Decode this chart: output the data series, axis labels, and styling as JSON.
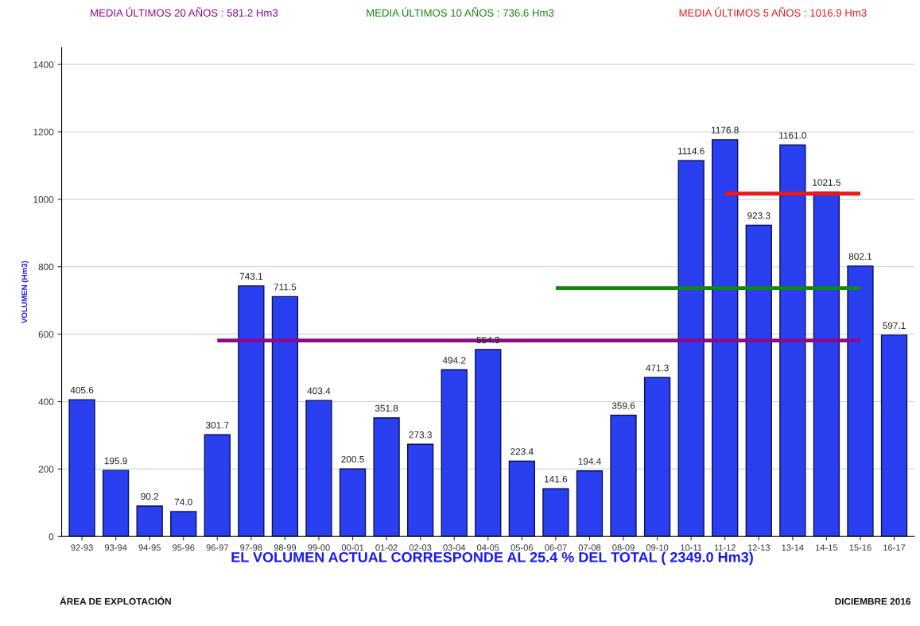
{
  "chart_data": {
    "type": "bar",
    "categories": [
      "92-93",
      "93-94",
      "94-95",
      "95-96",
      "96-97",
      "97-98",
      "98-99",
      "99-00",
      "00-01",
      "01-02",
      "02-03",
      "03-04",
      "04-05",
      "05-06",
      "06-07",
      "07-08",
      "08-09",
      "09-10",
      "10-11",
      "11-12",
      "12-13",
      "13-14",
      "14-15",
      "15-16",
      "16-17"
    ],
    "series": [
      {
        "color": "#2a3ff0",
        "values": [
          405.6,
          195.9,
          90.2,
          74.0,
          301.7,
          743.1,
          711.5,
          403.4,
          200.5,
          351.8,
          273.3,
          494.2,
          554.3,
          223.4,
          141.6,
          194.4,
          359.6,
          471.3,
          1114.6,
          1176.8,
          923.3,
          1161.0,
          1021.5,
          802.1,
          597.1
        ],
        "value_labels": [
          "405.6",
          "195.9",
          "90.2",
          "74.0",
          "301.7",
          "743.1",
          "711.5",
          "403.4",
          "200.5",
          "351.8",
          "273.3",
          "494.2",
          "554.3",
          "223.4",
          "141.6",
          "194.4",
          "359.6",
          "471.3",
          "1114.6",
          "1176.8",
          "923.3",
          "1161.0",
          "1021.5",
          "802.1",
          "597.1"
        ]
      },
      {
        "type": "line",
        "name": "MEDIA ÚLTIMOS 20 AÑOS : 581.2 Hm3",
        "color": "#8b0a8b",
        "values": [
          null,
          null,
          null,
          null,
          581.2,
          581.2,
          581.2,
          581.2,
          581.2,
          581.2,
          581.2,
          581.2,
          581.2,
          581.2,
          581.2,
          581.2,
          581.2,
          581.2,
          581.2,
          581.2,
          581.2,
          581.2,
          581.2,
          581.2,
          null
        ]
      },
      {
        "type": "line",
        "name": "MEDIA ÚLTIMOS 10 AÑOS : 736.6 Hm3",
        "color": "#118811",
        "values": [
          null,
          null,
          null,
          null,
          null,
          null,
          null,
          null,
          null,
          null,
          null,
          null,
          null,
          null,
          736.6,
          736.6,
          736.6,
          736.6,
          736.6,
          736.6,
          736.6,
          736.6,
          736.6,
          736.6,
          null
        ]
      },
      {
        "type": "line",
        "name": "MEDIA ÚLTIMOS 5 AÑOS : 1016.9 Hm3",
        "color": "#e81a1a",
        "values": [
          null,
          null,
          null,
          null,
          null,
          null,
          null,
          null,
          null,
          null,
          null,
          null,
          null,
          null,
          null,
          null,
          null,
          null,
          null,
          1016.9,
          1016.9,
          1016.9,
          1016.9,
          1016.9,
          null
        ]
      }
    ],
    "ylabel": "VOLUMEN (Hm3)",
    "ylim": [
      0,
      1450
    ],
    "yticks": [
      0,
      200,
      400,
      600,
      800,
      1000,
      1200,
      1400
    ],
    "grid": "y",
    "legend": "top",
    "annotations": [
      "EL VOLUMEN ACTUAL CORRESPONDE AL 25.4 % DEL TOTAL ( 2349.0 Hm3)",
      "ÁREA DE EXPLOTACIÓN",
      "DICIEMBRE 2016"
    ]
  }
}
